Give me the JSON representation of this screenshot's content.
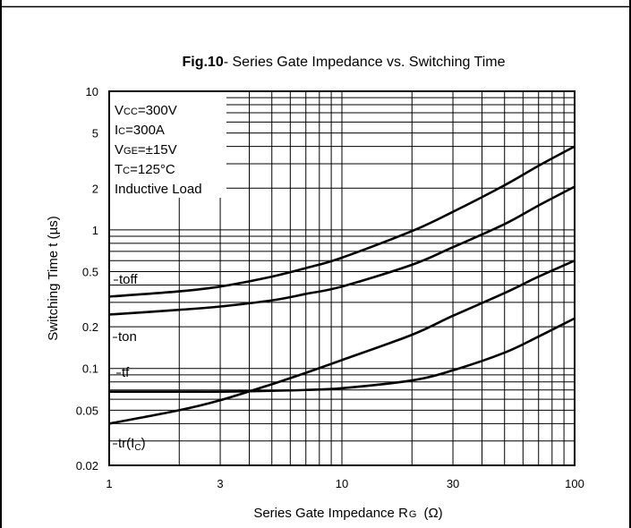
{
  "chart_data": {
    "type": "line",
    "title_bold": "Fig.10",
    "title_rest": "- Series Gate Impedance vs. Switching Time",
    "xlabel_main": "Series Gate Impedance R",
    "xlabel_sub": "G",
    "xlabel_unit": "(Ω)",
    "ylabel": "Switching Time t  (µs)",
    "x_scale": "log",
    "y_scale": "log",
    "xlim": [
      1,
      100
    ],
    "ylim": [
      0.02,
      10
    ],
    "x_ticks": [
      "1",
      "3",
      "10",
      "30",
      "100"
    ],
    "y_ticks": [
      "10",
      "5",
      "2",
      "1",
      "0.5",
      "0.2",
      "0.1",
      "0.05",
      "0.02"
    ],
    "conditions": [
      {
        "main": "V",
        "sub": "CC",
        "rest": "=300V"
      },
      {
        "main": "I",
        "sub": "C",
        "rest": "=300A"
      },
      {
        "main": "V",
        "sub": "GE",
        "rest": "=±15V"
      },
      {
        "main": "T",
        "sub": "C",
        "rest": "=125°C"
      },
      {
        "main": "Inductive Load",
        "sub": "",
        "rest": ""
      }
    ],
    "series": [
      {
        "name": "toff",
        "x": [
          1,
          2,
          3,
          5,
          7,
          10,
          20,
          30,
          50,
          70,
          100
        ],
        "y": [
          0.33,
          0.36,
          0.39,
          0.46,
          0.53,
          0.63,
          0.98,
          1.35,
          2.1,
          2.9,
          4.0
        ]
      },
      {
        "name": "ton",
        "x": [
          1,
          2,
          3,
          5,
          7,
          10,
          20,
          30,
          50,
          70,
          100
        ],
        "y": [
          0.245,
          0.265,
          0.28,
          0.31,
          0.345,
          0.39,
          0.56,
          0.75,
          1.1,
          1.5,
          2.05
        ]
      },
      {
        "name": "tf",
        "x": [
          1,
          2,
          3,
          5,
          7,
          10,
          20,
          30,
          50,
          70,
          100
        ],
        "y": [
          0.068,
          0.068,
          0.068,
          0.069,
          0.07,
          0.072,
          0.082,
          0.097,
          0.13,
          0.17,
          0.23
        ]
      },
      {
        "name": "tr(Ic)",
        "x": [
          1,
          2,
          3,
          5,
          7,
          10,
          20,
          30,
          50,
          70,
          100
        ],
        "y": [
          0.04,
          0.05,
          0.059,
          0.077,
          0.093,
          0.115,
          0.175,
          0.24,
          0.35,
          0.46,
          0.6
        ]
      }
    ],
    "curve_labels": [
      {
        "main": "toff",
        "sub": ""
      },
      {
        "main": "ton",
        "sub": ""
      },
      {
        "main": "tf",
        "sub": ""
      },
      {
        "main": "tr(I",
        "sub": "C",
        "close": ")"
      }
    ]
  }
}
